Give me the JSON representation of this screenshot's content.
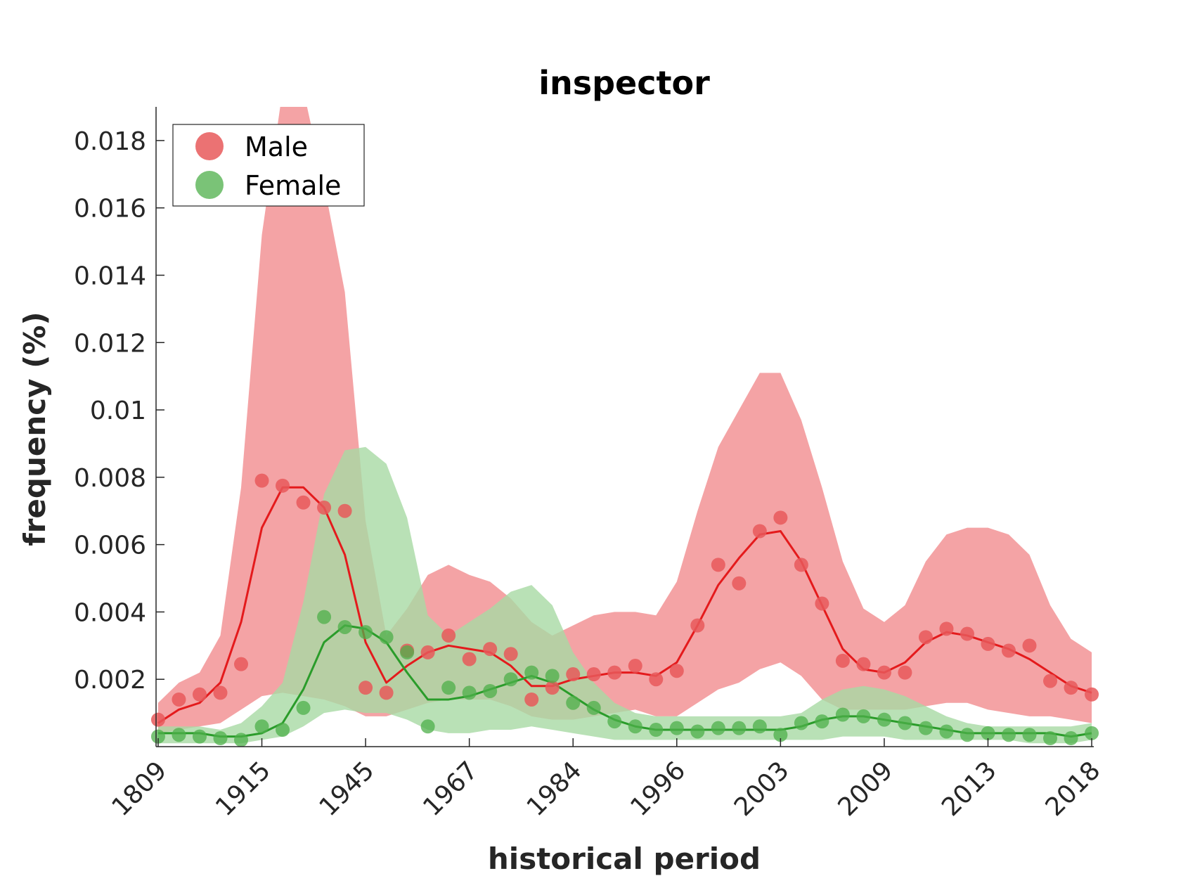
{
  "chart_data": {
    "type": "line",
    "title": "inspector",
    "xlabel": "historical period",
    "ylabel": "frequency (%)",
    "x_tick_labels": [
      "1809",
      "1915",
      "1945",
      "1967",
      "1984",
      "1996",
      "2003",
      "2009",
      "2013",
      "2018"
    ],
    "y_ticks": [
      0.002,
      0.004,
      0.006,
      0.008,
      0.01,
      0.012,
      0.014,
      0.016,
      0.018
    ],
    "y_tick_labels": [
      "0.002",
      "0.004",
      "0.006",
      "0.008",
      "0.01",
      "0.012",
      "0.014",
      "0.016",
      "0.018"
    ],
    "ylim": [
      0,
      0.019
    ],
    "xlim": [
      -0.1,
      45.1
    ],
    "x_index_of_ticks": [
      0,
      5,
      10,
      15,
      20,
      25,
      30,
      35,
      40,
      45
    ],
    "legend_position": "top-left",
    "series": [
      {
        "name": "Male",
        "color": "#e41a1c",
        "marker_color": "#e8595b",
        "band_color": "#f4a3a5",
        "points": [
          0.0008,
          0.0014,
          0.00155,
          0.0016,
          0.00245,
          0.0079,
          0.00775,
          0.00725,
          0.0071,
          0.007,
          0.00175,
          0.0016,
          0.00285,
          0.0028,
          0.0033,
          0.0026,
          0.0029,
          0.00275,
          0.0014,
          0.00175,
          0.00215,
          0.00215,
          0.0022,
          0.0024,
          0.002,
          0.00225,
          0.0036,
          0.0054,
          0.00485,
          0.0064,
          0.0068,
          0.0054,
          0.00425,
          0.00255,
          0.00245,
          0.0022,
          0.0022,
          0.00325,
          0.0035,
          0.00335,
          0.00305,
          0.00285,
          0.003,
          0.00195,
          0.00175,
          0.00155
        ],
        "smooth": [
          0.0007,
          0.0011,
          0.0013,
          0.0019,
          0.0037,
          0.0065,
          0.0077,
          0.0077,
          0.0071,
          0.0057,
          0.0031,
          0.0019,
          0.0024,
          0.0028,
          0.003,
          0.0029,
          0.0028,
          0.0024,
          0.0018,
          0.0018,
          0.002,
          0.0021,
          0.0022,
          0.0022,
          0.0021,
          0.0025,
          0.0036,
          0.0048,
          0.0056,
          0.0063,
          0.0064,
          0.0055,
          0.0042,
          0.0029,
          0.0023,
          0.0022,
          0.0025,
          0.0031,
          0.0034,
          0.0033,
          0.0031,
          0.0029,
          0.0026,
          0.0022,
          0.0018,
          0.0016
        ],
        "band_upper": [
          0.0013,
          0.0019,
          0.0022,
          0.0033,
          0.0077,
          0.0152,
          0.0195,
          0.0195,
          0.0167,
          0.0135,
          0.0067,
          0.0033,
          0.0041,
          0.0051,
          0.0054,
          0.0051,
          0.0049,
          0.0044,
          0.0037,
          0.0033,
          0.0036,
          0.0039,
          0.004,
          0.004,
          0.0039,
          0.0049,
          0.007,
          0.0089,
          0.01,
          0.0111,
          0.0111,
          0.0097,
          0.0077,
          0.0055,
          0.0041,
          0.0037,
          0.0042,
          0.0055,
          0.0063,
          0.0065,
          0.0065,
          0.0063,
          0.0057,
          0.0042,
          0.0032,
          0.0028
        ],
        "band_lower": [
          0.0004,
          0.0005,
          0.0006,
          0.0007,
          0.0011,
          0.0015,
          0.0016,
          0.0015,
          0.0014,
          0.0012,
          0.0009,
          0.0009,
          0.0011,
          0.0013,
          0.0014,
          0.0014,
          0.0014,
          0.0012,
          0.0009,
          0.0008,
          0.0008,
          0.0009,
          0.001,
          0.0011,
          0.0009,
          0.0009,
          0.0013,
          0.0017,
          0.0019,
          0.0023,
          0.0025,
          0.0021,
          0.0014,
          0.0011,
          0.0011,
          0.0011,
          0.0011,
          0.0012,
          0.0013,
          0.0013,
          0.0011,
          0.001,
          0.0009,
          0.0009,
          0.0008,
          0.0007
        ]
      },
      {
        "name": "Female",
        "color": "#2a9c2a",
        "marker_color": "#4daf4a",
        "band_color": "#a8d9a4",
        "points": [
          0.0003,
          0.00035,
          0.0003,
          0.00025,
          0.0002,
          0.0006,
          0.0005,
          0.00115,
          0.00385,
          0.00355,
          0.0034,
          0.00325,
          0.0028,
          0.0006,
          0.00175,
          0.0016,
          0.00165,
          0.002,
          0.0022,
          0.0021,
          0.0013,
          0.00115,
          0.00075,
          0.0006,
          0.0005,
          0.00055,
          0.00045,
          0.00055,
          0.00055,
          0.0006,
          0.00035,
          0.0007,
          0.00075,
          0.00095,
          0.0009,
          0.0008,
          0.0007,
          0.00055,
          0.00045,
          0.00035,
          0.0004,
          0.00035,
          0.00035,
          0.00025,
          0.00025,
          0.0004
        ],
        "smooth": [
          0.0004,
          0.0004,
          0.0004,
          0.0003,
          0.0003,
          0.0004,
          0.0007,
          0.0017,
          0.0031,
          0.0036,
          0.0035,
          0.0031,
          0.0022,
          0.0014,
          0.0014,
          0.0015,
          0.0017,
          0.0019,
          0.0021,
          0.0019,
          0.0015,
          0.0011,
          0.0008,
          0.0006,
          0.0005,
          0.0005,
          0.0005,
          0.0005,
          0.0005,
          0.0005,
          0.0005,
          0.0006,
          0.0008,
          0.0009,
          0.0009,
          0.0008,
          0.0007,
          0.0006,
          0.0005,
          0.0004,
          0.0004,
          0.0004,
          0.0004,
          0.0004,
          0.0003,
          0.0004
        ],
        "band_upper": [
          0.0006,
          0.0006,
          0.0006,
          0.0005,
          0.0007,
          0.0012,
          0.0019,
          0.0043,
          0.0075,
          0.0088,
          0.0089,
          0.0084,
          0.0068,
          0.0039,
          0.0033,
          0.0037,
          0.0041,
          0.0046,
          0.0048,
          0.0042,
          0.0028,
          0.0019,
          0.0013,
          0.001,
          0.0009,
          0.0009,
          0.0009,
          0.0009,
          0.0009,
          0.0009,
          0.0009,
          0.001,
          0.0014,
          0.0017,
          0.0018,
          0.0017,
          0.0015,
          0.0012,
          0.0009,
          0.0007,
          0.0006,
          0.0006,
          0.0006,
          0.0006,
          0.0006,
          0.0007
        ],
        "band_lower": [
          0.0001,
          0.0001,
          0.0001,
          0.0001,
          0.0001,
          0.0002,
          0.0003,
          0.0006,
          0.001,
          0.0011,
          0.001,
          0.001,
          0.0008,
          0.0005,
          0.0004,
          0.0004,
          0.0005,
          0.0005,
          0.0006,
          0.0005,
          0.0004,
          0.0003,
          0.0002,
          0.0002,
          0.0002,
          0.0002,
          0.0002,
          0.0002,
          0.0002,
          0.0002,
          0.0002,
          0.0002,
          0.0002,
          0.0003,
          0.0003,
          0.0003,
          0.0002,
          0.0002,
          0.0002,
          0.0002,
          0.0002,
          0.0002,
          0.0001,
          0.0001,
          0.0001,
          0.0002
        ]
      }
    ]
  }
}
